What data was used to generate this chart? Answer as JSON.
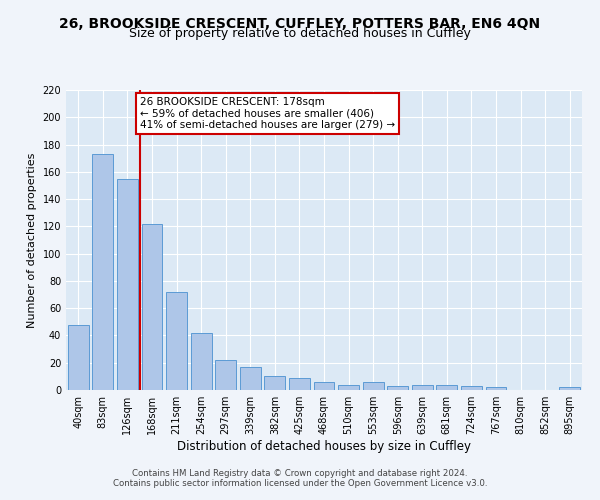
{
  "title": "26, BROOKSIDE CRESCENT, CUFFLEY, POTTERS BAR, EN6 4QN",
  "subtitle": "Size of property relative to detached houses in Cuffley",
  "xlabel": "Distribution of detached houses by size in Cuffley",
  "ylabel": "Number of detached properties",
  "categories": [
    "40sqm",
    "83sqm",
    "126sqm",
    "168sqm",
    "211sqm",
    "254sqm",
    "297sqm",
    "339sqm",
    "382sqm",
    "425sqm",
    "468sqm",
    "510sqm",
    "553sqm",
    "596sqm",
    "639sqm",
    "681sqm",
    "724sqm",
    "767sqm",
    "810sqm",
    "852sqm",
    "895sqm"
  ],
  "values": [
    48,
    173,
    155,
    122,
    72,
    42,
    22,
    17,
    10,
    9,
    6,
    4,
    6,
    3,
    4,
    4,
    3,
    2,
    0,
    0,
    2
  ],
  "bar_color": "#aec6e8",
  "bar_edge_color": "#5b9bd5",
  "background_color": "#dce9f5",
  "grid_color": "#ffffff",
  "vline_color": "#cc0000",
  "annotation_text": "26 BROOKSIDE CRESCENT: 178sqm\n← 59% of detached houses are smaller (406)\n41% of semi-detached houses are larger (279) →",
  "annotation_box_color": "#ffffff",
  "annotation_box_edge": "#cc0000",
  "ylim": [
    0,
    220
  ],
  "yticks": [
    0,
    20,
    40,
    60,
    80,
    100,
    120,
    140,
    160,
    180,
    200,
    220
  ],
  "footer1": "Contains HM Land Registry data © Crown copyright and database right 2024.",
  "footer2": "Contains public sector information licensed under the Open Government Licence v3.0.",
  "fig_bg": "#f0f4fa",
  "title_fontsize": 10,
  "subtitle_fontsize": 9,
  "ylabel_fontsize": 8,
  "xlabel_fontsize": 8.5,
  "tick_fontsize": 7,
  "annot_fontsize": 7.5,
  "footer_fontsize": 6.2
}
